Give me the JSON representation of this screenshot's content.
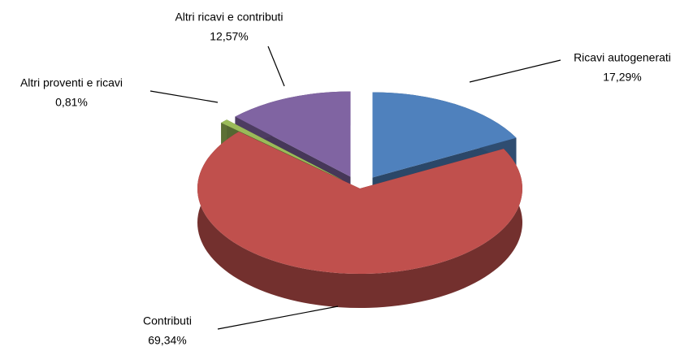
{
  "chart_data": {
    "type": "pie",
    "categories": [
      "Ricavi autogenerati",
      "Contributi",
      "Altri proventi e ricavi",
      "Altri ricavi e contributi"
    ],
    "values": [
      17.29,
      69.34,
      0.81,
      12.57
    ],
    "value_labels": [
      "17,29%",
      "69,34%",
      "0,81%",
      "12,57%"
    ],
    "colors": [
      "#4f81bd",
      "#c0504d",
      "#9bbb59",
      "#8064a2"
    ]
  }
}
